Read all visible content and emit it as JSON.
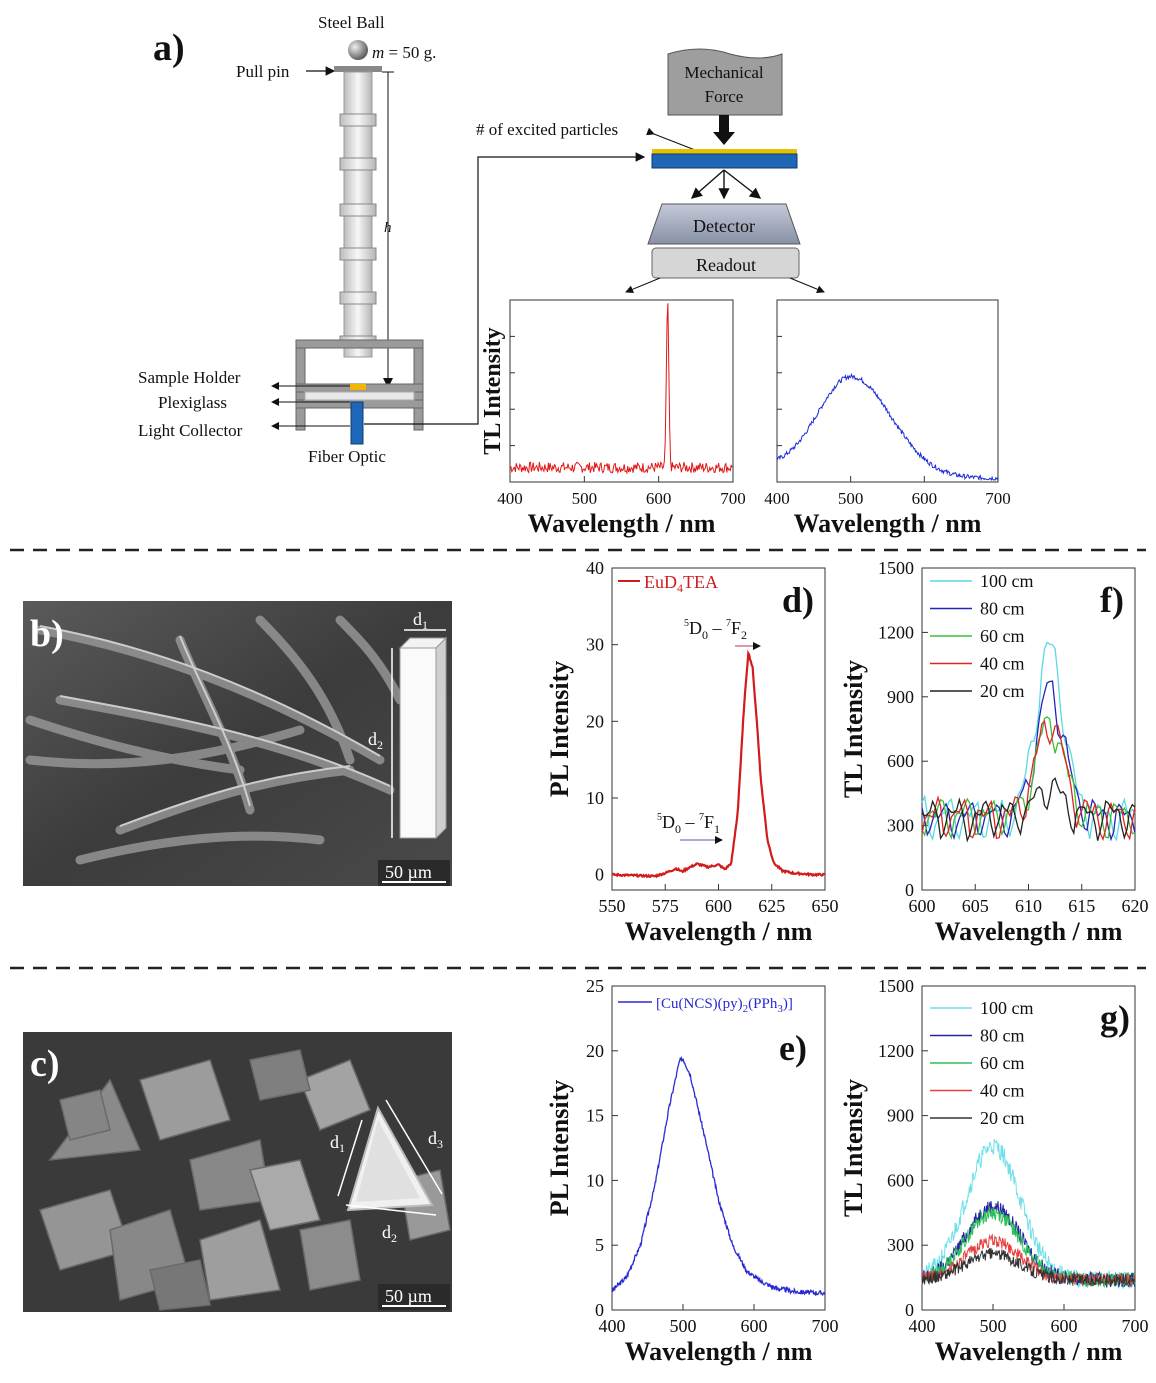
{
  "panel_a": {
    "label": "a)",
    "steel_ball": "Steel Ball",
    "mass_sym": "m",
    "mass_val": " = 50 g.",
    "pull_pin": "Pull pin",
    "h_label": "h",
    "sample_holder": "Sample Holder",
    "plexiglass": "Plexiglass",
    "light_collector": "Light Collector",
    "fiber_optic": "Fiber Optic",
    "mech_force_1": "Mechanical",
    "mech_force_2": "Force",
    "excited": "# of excited particles",
    "detector": "Detector",
    "readout": "Readout"
  },
  "panel_b": {
    "label": "b)",
    "d1": "d",
    "d1s": "1",
    "d2": "d",
    "d2s": "2",
    "scale": "50 µm"
  },
  "panel_c": {
    "label": "c)",
    "d1": "d",
    "d1s": "1",
    "d2": "d",
    "d2s": "2",
    "d3": "d",
    "d3s": "3",
    "scale": "50 µm"
  },
  "chart_data": [
    {
      "id": "a-red",
      "type": "line",
      "xlabel": "Wavelength / nm",
      "ylabel": "TL Intensity",
      "xlim": [
        400,
        700
      ],
      "xticks": [
        400,
        500,
        600,
        700
      ],
      "yticks_shown": false,
      "series": [
        {
          "color": "#e01818",
          "description_values": {
            "baseline": 0.08,
            "peak_x": 612,
            "peak_y": 0.9
          }
        }
      ]
    },
    {
      "id": "a-blue",
      "type": "line",
      "xlabel": "Wavelength / nm",
      "xlim": [
        400,
        700
      ],
      "xticks": [
        400,
        500,
        600,
        700
      ],
      "yticks_shown": false,
      "series": [
        {
          "color": "#1c2bd6",
          "description_values": {
            "start": 0.1,
            "peak_x": 500,
            "peak_y": 0.58,
            "end": 0.02
          }
        }
      ]
    },
    {
      "id": "d",
      "label": "d)",
      "type": "line",
      "xlabel": "Wavelength / nm",
      "ylabel": "PL Intensity",
      "xlim": [
        550,
        650
      ],
      "ylim": [
        -2,
        40
      ],
      "xticks": [
        550,
        575,
        600,
        625,
        650
      ],
      "yticks": [
        0,
        10,
        20,
        30,
        40
      ],
      "legend": "EuD",
      "legend_sub": "4",
      "legend_tail": "TEA",
      "annot_main": "D",
      "annot_pre": "5",
      "annot_sub": "0",
      "annot_dash": " – ",
      "annot_pre2": "7",
      "annot_main2": "F",
      "annot_f2": "2",
      "annot_f1": "1",
      "series": [
        {
          "name": "EuD4TEA",
          "color": "#d01c1c",
          "x": [
            550,
            560,
            570,
            575,
            580,
            583,
            586,
            590,
            595,
            600,
            603,
            606,
            609,
            612,
            614,
            616,
            618,
            620,
            623,
            626,
            630,
            635,
            640,
            645,
            650
          ],
          "y": [
            0,
            -0.1,
            -0.2,
            0.2,
            0.8,
            0.4,
            0.9,
            1.4,
            1.0,
            1.3,
            0.7,
            1.5,
            8,
            22,
            29,
            27,
            20,
            12,
            4.5,
            1.5,
            0.5,
            0.2,
            0.1,
            0,
            0
          ]
        }
      ]
    },
    {
      "id": "f",
      "label": "f)",
      "type": "line",
      "xlabel": "Wavelength / nm",
      "ylabel": "TL Intensity",
      "xlim": [
        600,
        620
      ],
      "ylim": [
        0,
        1500
      ],
      "xticks": [
        600,
        605,
        610,
        615,
        620
      ],
      "yticks": [
        0,
        300,
        600,
        900,
        1200,
        1500
      ],
      "legend_position": "top-left",
      "series": [
        {
          "name": "100 cm",
          "color": "#5ad9e0",
          "peak": 1120
        },
        {
          "name": "80 cm",
          "color": "#2424b8",
          "peak": 930
        },
        {
          "name": "60 cm",
          "color": "#3bbf3b",
          "peak": 780
        },
        {
          "name": "40 cm",
          "color": "#e02424",
          "peak": 780
        },
        {
          "name": "20 cm",
          "color": "#222222",
          "peak": 480
        }
      ]
    },
    {
      "id": "e",
      "label": "e)",
      "type": "line",
      "xlabel": "Wavelength / nm",
      "ylabel": "PL Intensity",
      "xlim": [
        400,
        700
      ],
      "ylim": [
        0,
        25
      ],
      "xticks": [
        400,
        500,
        600,
        700
      ],
      "yticks": [
        0,
        5,
        10,
        15,
        20,
        25
      ],
      "legend": "[Cu(NCS)(py)",
      "legend_s1": "2",
      "legend_mid": "(PPh",
      "legend_s2": "3",
      "legend_end": ")]",
      "series": [
        {
          "name": "[Cu(NCS)(py)2(PPh3)]",
          "color": "#2a2ad0",
          "x": [
            400,
            420,
            440,
            460,
            480,
            495,
            500,
            510,
            530,
            550,
            570,
            590,
            610,
            630,
            660,
            700
          ],
          "y": [
            1.5,
            2.5,
            5,
            9.5,
            15.5,
            19.2,
            19.4,
            18.2,
            13.5,
            8.5,
            5,
            3,
            2.2,
            1.7,
            1.4,
            1.3
          ]
        }
      ]
    },
    {
      "id": "g",
      "label": "g)",
      "type": "line",
      "xlabel": "Wavelength / nm",
      "ylabel": "TL Intensity",
      "xlim": [
        400,
        700
      ],
      "ylim": [
        0,
        1500
      ],
      "xticks": [
        400,
        500,
        600,
        700
      ],
      "yticks": [
        0,
        300,
        600,
        900,
        1200,
        1500
      ],
      "legend_position": "top-left",
      "series": [
        {
          "name": "100 cm",
          "color": "#6fe0e8",
          "peak": 760
        },
        {
          "name": "80 cm",
          "color": "#2424a0",
          "peak": 480
        },
        {
          "name": "60 cm",
          "color": "#2ec05a",
          "peak": 450
        },
        {
          "name": "40 cm",
          "color": "#e84040",
          "peak": 320
        },
        {
          "name": "20 cm",
          "color": "#333333",
          "peak": 260
        }
      ]
    }
  ]
}
